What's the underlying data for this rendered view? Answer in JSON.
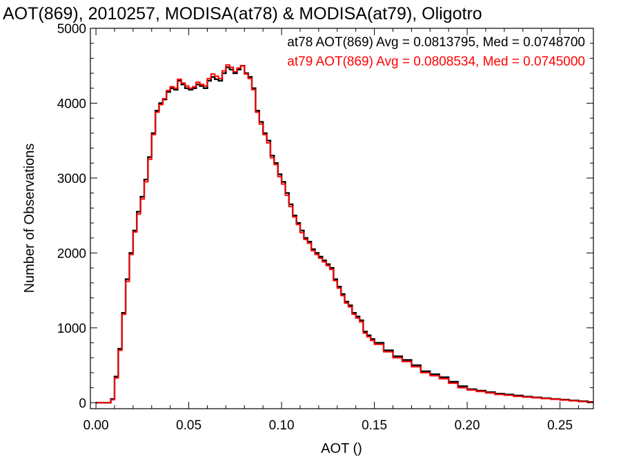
{
  "chart_data": {
    "type": "line",
    "title": "AOT(869), 2010257, MODISA(at78) & MODISA(at79), Oligotro",
    "xlabel": "AOT ()",
    "ylabel": "Number of Observations",
    "xlim": [
      -0.003,
      0.268
    ],
    "ylim": [
      -80,
      5000
    ],
    "xticks": [
      0.0,
      0.05,
      0.1,
      0.15,
      0.2,
      0.25
    ],
    "xtick_labels": [
      "0.00",
      "0.05",
      "0.10",
      "0.15",
      "0.20",
      "0.25"
    ],
    "yticks": [
      0,
      1000,
      2000,
      3000,
      4000,
      5000
    ],
    "ytick_labels": [
      "0",
      "1000",
      "2000",
      "3000",
      "4000",
      "5000"
    ],
    "step_style": "histogram",
    "series": [
      {
        "name": "at78",
        "stat_text": "at78 AOT(869) Avg = 0.0813795, Med = 0.0748700",
        "color": "#000000",
        "x": [
          0.0,
          0.004,
          0.008,
          0.01,
          0.012,
          0.014,
          0.016,
          0.018,
          0.02,
          0.022,
          0.024,
          0.026,
          0.028,
          0.03,
          0.032,
          0.034,
          0.036,
          0.038,
          0.04,
          0.042,
          0.044,
          0.046,
          0.048,
          0.05,
          0.052,
          0.054,
          0.056,
          0.058,
          0.06,
          0.062,
          0.064,
          0.066,
          0.068,
          0.07,
          0.072,
          0.074,
          0.076,
          0.078,
          0.08,
          0.082,
          0.084,
          0.086,
          0.088,
          0.09,
          0.092,
          0.094,
          0.096,
          0.098,
          0.1,
          0.102,
          0.104,
          0.106,
          0.108,
          0.11,
          0.112,
          0.114,
          0.116,
          0.118,
          0.12,
          0.122,
          0.124,
          0.126,
          0.128,
          0.13,
          0.132,
          0.134,
          0.136,
          0.138,
          0.14,
          0.142,
          0.144,
          0.146,
          0.148,
          0.15,
          0.155,
          0.16,
          0.165,
          0.17,
          0.175,
          0.18,
          0.185,
          0.19,
          0.195,
          0.2,
          0.205,
          0.21,
          0.215,
          0.22,
          0.225,
          0.23,
          0.235,
          0.24,
          0.245,
          0.25,
          0.255,
          0.26,
          0.265
        ],
        "y": [
          0,
          0,
          50,
          350,
          720,
          1200,
          1650,
          2000,
          2300,
          2550,
          2750,
          2980,
          3280,
          3600,
          3900,
          4000,
          4050,
          4150,
          4200,
          4180,
          4300,
          4250,
          4200,
          4180,
          4200,
          4250,
          4230,
          4200,
          4300,
          4350,
          4320,
          4300,
          4400,
          4480,
          4450,
          4400,
          4450,
          4500,
          4400,
          4350,
          4200,
          3900,
          3750,
          3600,
          3500,
          3300,
          3200,
          3050,
          2950,
          2800,
          2650,
          2500,
          2400,
          2300,
          2200,
          2150,
          2050,
          2000,
          1950,
          1900,
          1850,
          1800,
          1650,
          1550,
          1450,
          1350,
          1300,
          1200,
          1150,
          1100,
          950,
          900,
          850,
          800,
          700,
          620,
          570,
          500,
          420,
          380,
          340,
          280,
          220,
          180,
          160,
          140,
          120,
          110,
          95,
          80,
          70,
          60,
          50,
          40,
          30,
          20,
          10
        ]
      },
      {
        "name": "at79",
        "stat_text": "at79 AOT(869) Avg = 0.0808534, Med = 0.0745000",
        "color": "#ff0000",
        "x": [
          0.0,
          0.004,
          0.008,
          0.01,
          0.012,
          0.014,
          0.016,
          0.018,
          0.02,
          0.022,
          0.024,
          0.026,
          0.028,
          0.03,
          0.032,
          0.034,
          0.036,
          0.038,
          0.04,
          0.042,
          0.044,
          0.046,
          0.048,
          0.05,
          0.052,
          0.054,
          0.056,
          0.058,
          0.06,
          0.062,
          0.064,
          0.066,
          0.068,
          0.07,
          0.072,
          0.074,
          0.076,
          0.078,
          0.08,
          0.082,
          0.084,
          0.086,
          0.088,
          0.09,
          0.092,
          0.094,
          0.096,
          0.098,
          0.1,
          0.102,
          0.104,
          0.106,
          0.108,
          0.11,
          0.112,
          0.114,
          0.116,
          0.118,
          0.12,
          0.122,
          0.124,
          0.126,
          0.128,
          0.13,
          0.132,
          0.134,
          0.136,
          0.138,
          0.14,
          0.142,
          0.144,
          0.146,
          0.148,
          0.15,
          0.155,
          0.16,
          0.165,
          0.17,
          0.175,
          0.18,
          0.185,
          0.19,
          0.195,
          0.2,
          0.205,
          0.21,
          0.215,
          0.22,
          0.225,
          0.23,
          0.235,
          0.24,
          0.245,
          0.25,
          0.255,
          0.26,
          0.265
        ],
        "y": [
          0,
          0,
          40,
          330,
          700,
          1180,
          1620,
          1980,
          2280,
          2520,
          2720,
          2950,
          3250,
          3580,
          3880,
          3980,
          4060,
          4170,
          4220,
          4200,
          4320,
          4270,
          4230,
          4200,
          4220,
          4280,
          4250,
          4230,
          4330,
          4390,
          4360,
          4330,
          4430,
          4510,
          4480,
          4420,
          4470,
          4500,
          4390,
          4330,
          4180,
          3880,
          3720,
          3580,
          3470,
          3270,
          3180,
          3020,
          2920,
          2770,
          2620,
          2480,
          2380,
          2270,
          2180,
          2130,
          2030,
          1980,
          1930,
          1880,
          1830,
          1780,
          1630,
          1530,
          1430,
          1330,
          1280,
          1180,
          1130,
          1080,
          930,
          880,
          830,
          780,
          680,
          600,
          550,
          480,
          400,
          360,
          320,
          260,
          200,
          170,
          150,
          130,
          110,
          100,
          85,
          75,
          65,
          55,
          45,
          35,
          25,
          15,
          8
        ]
      }
    ]
  }
}
